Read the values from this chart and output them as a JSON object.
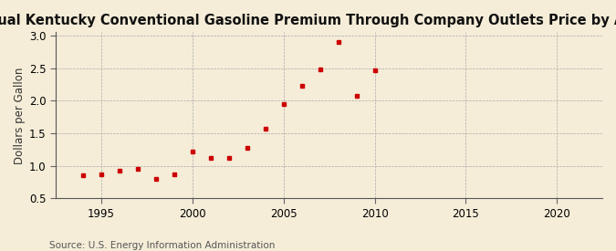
{
  "title": "Annual Kentucky Conventional Gasoline Premium Through Company Outlets Price by All Sellers",
  "ylabel": "Dollars per Gallon",
  "source": "Source: U.S. Energy Information Administration",
  "background_color": "#f5edd8",
  "marker_color": "#cc0000",
  "years": [
    1994,
    1995,
    1996,
    1997,
    1998,
    1999,
    2000,
    2001,
    2002,
    2003,
    2004,
    2005,
    2006,
    2007,
    2008,
    2009,
    2010
  ],
  "values": [
    0.85,
    0.87,
    0.92,
    0.95,
    0.8,
    0.87,
    1.22,
    1.12,
    1.12,
    1.27,
    1.57,
    1.95,
    2.23,
    2.48,
    2.9,
    2.07,
    2.47
  ],
  "xlim": [
    1992.5,
    2022.5
  ],
  "ylim": [
    0.5,
    3.05
  ],
  "xticks": [
    1995,
    2000,
    2005,
    2010,
    2015,
    2020
  ],
  "yticks": [
    0.5,
    1.0,
    1.5,
    2.0,
    2.5,
    3.0
  ],
  "title_fontsize": 10.5,
  "label_fontsize": 8.5,
  "tick_fontsize": 8.5,
  "source_fontsize": 7.5
}
